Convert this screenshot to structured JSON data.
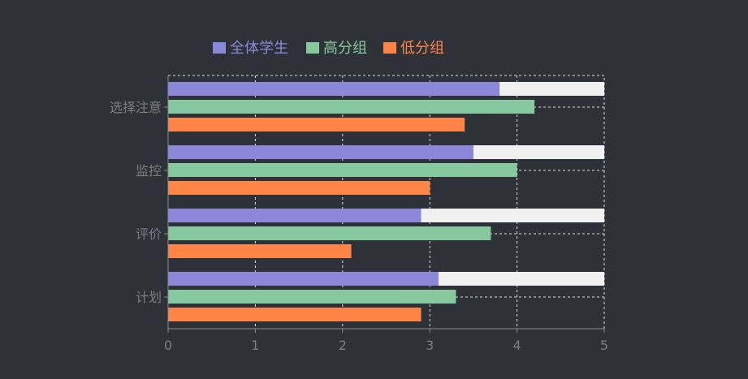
{
  "chart_data": {
    "type": "bar",
    "orientation": "horizontal",
    "categories": [
      "计划",
      "评价",
      "监控",
      "选择注意"
    ],
    "series": [
      {
        "name": "全体学生",
        "color": "#8c87d8",
        "values": [
          3.1,
          2.9,
          3.5,
          3.8
        ]
      },
      {
        "name": "高分组",
        "color": "#86c99e",
        "values": [
          3.3,
          3.7,
          4.0,
          4.2
        ]
      },
      {
        "name": "低分组",
        "color": "#ff8546",
        "values": [
          2.9,
          2.1,
          3.0,
          3.4
        ]
      }
    ],
    "xlim": [
      0,
      5
    ],
    "xticks": [
      0,
      1,
      2,
      3,
      4,
      5
    ],
    "first_series_background_color": "#f0f0f0",
    "grid": true,
    "grid_style": "dashed",
    "legend_position": "top",
    "background_color": "#2f3138",
    "axis_text_color": "#7a7d86"
  }
}
